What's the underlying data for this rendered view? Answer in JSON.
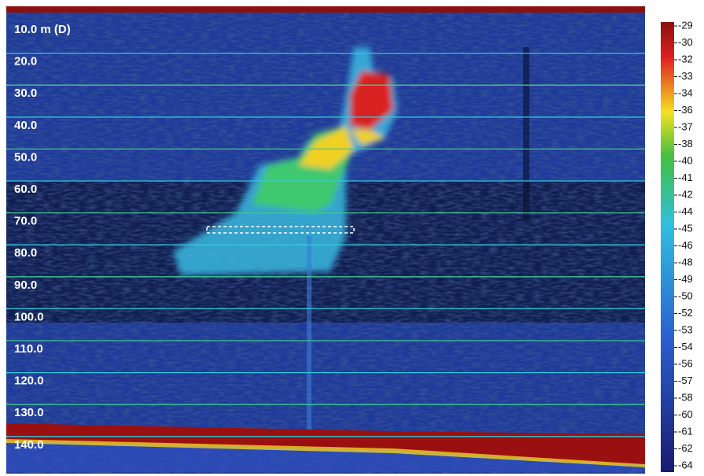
{
  "depth_labels": [
    "10.0 m (D)",
    "20.0",
    "30.0",
    "40.0",
    "50.0",
    "60.0",
    "70.0",
    "80.0",
    "90.0",
    "100.0",
    "110.0",
    "120.0",
    "130.0",
    "140.0"
  ],
  "scale_labels": [
    "-29",
    "-30",
    "-32",
    "-33",
    "-34",
    "-36",
    "-37",
    "-38",
    "-40",
    "-41",
    "-42",
    "-44",
    "-45",
    "-46",
    "-48",
    "-49",
    "-50",
    "-52",
    "-53",
    "-54",
    "-56",
    "-57",
    "-58",
    "-60",
    "-61",
    "-62",
    "-64"
  ]
}
